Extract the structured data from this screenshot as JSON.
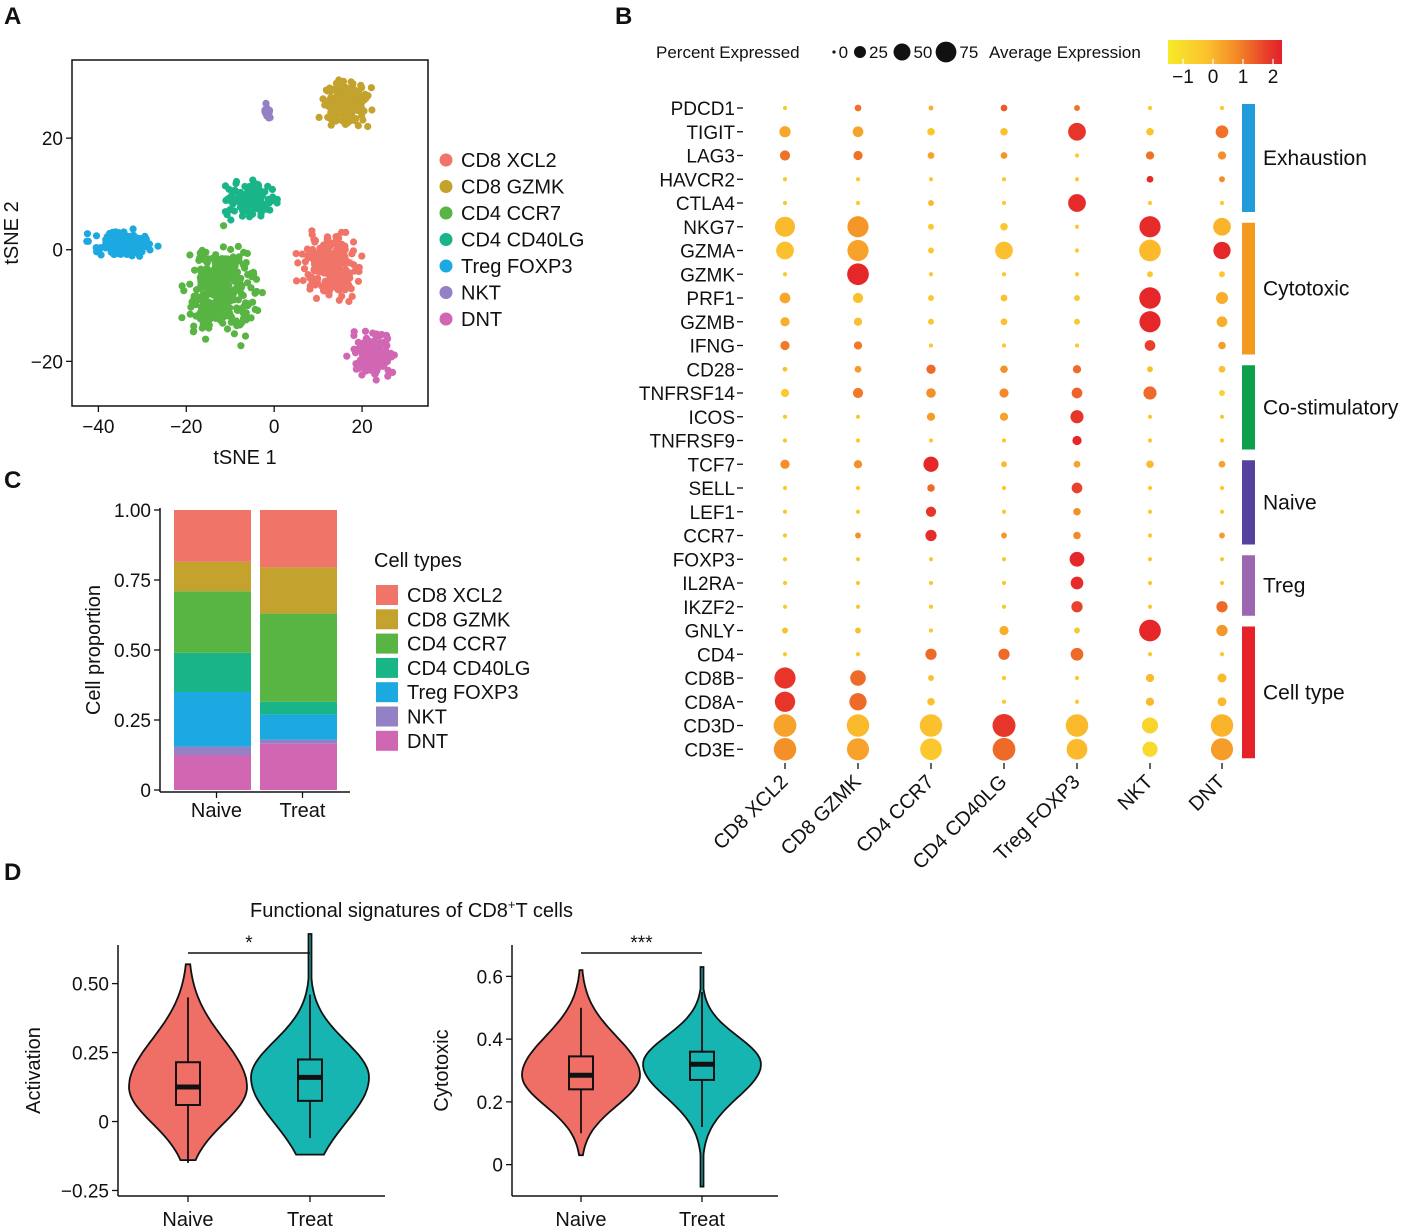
{
  "chart_data": [
    {
      "panel": "A",
      "type": "scatter",
      "xlabel": "tSNE 1",
      "ylabel": "tSNE 2",
      "xlim": [
        -46,
        35
      ],
      "ylim": [
        -28,
        34
      ],
      "xticks": [
        -40,
        -20,
        0,
        20
      ],
      "xtick_labels": [
        "−40",
        "−20",
        "0",
        "20"
      ],
      "yticks": [
        -20,
        0,
        20
      ],
      "ytick_labels": [
        "−20",
        "0",
        "20"
      ],
      "clusters": [
        {
          "name": "CD8 XCL2",
          "color": "#f07468",
          "center": [
            13,
            -3
          ],
          "spread": [
            5.5,
            4.5
          ],
          "n": 230
        },
        {
          "name": "CD8 GZMK",
          "color": "#c3a22e",
          "center": [
            16,
            26
          ],
          "spread": [
            4.5,
            3.5
          ],
          "n": 170
        },
        {
          "name": "CD4 CCR7",
          "color": "#58b443",
          "center": [
            -12,
            -7
          ],
          "spread": [
            6.5,
            7
          ],
          "n": 330
        },
        {
          "name": "CD4 CD40LG",
          "color": "#1ab489",
          "center": [
            -5,
            9
          ],
          "spread": [
            5,
            2.6
          ],
          "n": 130
        },
        {
          "name": "Treg FOXP3",
          "color": "#1ca8e0",
          "center": [
            -35,
            1
          ],
          "spread": [
            5.5,
            2
          ],
          "n": 150
        },
        {
          "name": "NKT",
          "color": "#9380c5",
          "center": [
            -1.5,
            24.5
          ],
          "spread": [
            0.9,
            1.1
          ],
          "n": 22
        },
        {
          "name": "DNT",
          "color": "#d166b2",
          "center": [
            22.5,
            -18.5
          ],
          "spread": [
            4,
            3.5
          ],
          "n": 150
        }
      ]
    },
    {
      "panel": "B",
      "type": "dot",
      "legend_size_title": "Percent Expressed",
      "size_levels": [
        0,
        25,
        50,
        75
      ],
      "legend_color_title": "Average Expression",
      "color_ticks": [
        -1,
        0,
        1,
        2
      ],
      "color_tick_labels": [
        "−1",
        "0",
        "1",
        "2"
      ],
      "color_range": [
        -1.5,
        2.3
      ],
      "colors": [
        "#f7ea2a",
        "#fbc02d",
        "#f38a27",
        "#e8432a",
        "#e41e2a"
      ],
      "columns": [
        "CD8 XCL2",
        "CD8 GZMK",
        "CD4 CCR7",
        "CD4 CD40LG",
        "Treg FOXP3",
        "NKT",
        "DNT"
      ],
      "genes": [
        "PDCD1",
        "TIGIT",
        "LAG3",
        "HAVCR2",
        "CTLA4",
        "NKG7",
        "GZMA",
        "GZMK",
        "PRF1",
        "GZMB",
        "IFNG",
        "CD28",
        "TNFRSF14",
        "ICOS",
        "TNFRSF9",
        "TCF7",
        "SELL",
        "LEF1",
        "CCR7",
        "FOXP3",
        "IL2RA",
        "IKZF2",
        "GNLY",
        "CD4",
        "CD8B",
        "CD8A",
        "CD3D",
        "CD3E"
      ],
      "percent": [
        [
          3,
          8,
          4,
          8,
          6,
          3,
          3
        ],
        [
          22,
          20,
          10,
          10,
          55,
          10,
          28
        ],
        [
          18,
          15,
          8,
          8,
          3,
          12,
          12
        ],
        [
          3,
          3,
          3,
          3,
          3,
          8,
          6
        ],
        [
          3,
          3,
          6,
          3,
          55,
          3,
          3
        ],
        [
          70,
          78,
          6,
          10,
          3,
          78,
          55
        ],
        [
          55,
          78,
          6,
          55,
          3,
          82,
          52
        ],
        [
          3,
          82,
          3,
          3,
          3,
          6,
          6
        ],
        [
          20,
          18,
          6,
          8,
          6,
          80,
          25
        ],
        [
          15,
          12,
          6,
          8,
          6,
          78,
          20
        ],
        [
          15,
          12,
          3,
          3,
          3,
          20,
          10
        ],
        [
          4,
          8,
          15,
          10,
          12,
          6,
          8
        ],
        [
          12,
          18,
          16,
          15,
          20,
          30,
          6
        ],
        [
          3,
          3,
          12,
          12,
          30,
          3,
          3
        ],
        [
          3,
          3,
          3,
          3,
          15,
          3,
          3
        ],
        [
          15,
          12,
          40,
          6,
          8,
          10,
          8
        ],
        [
          3,
          3,
          10,
          3,
          20,
          3,
          3
        ],
        [
          3,
          3,
          18,
          3,
          10,
          3,
          3
        ],
        [
          3,
          6,
          22,
          6,
          10,
          3,
          6
        ],
        [
          3,
          3,
          3,
          3,
          38,
          3,
          3
        ],
        [
          3,
          3,
          3,
          3,
          28,
          3,
          3
        ],
        [
          3,
          3,
          3,
          3,
          22,
          3,
          22
        ],
        [
          6,
          6,
          3,
          15,
          6,
          82,
          22
        ],
        [
          3,
          3,
          22,
          22,
          28,
          3,
          3
        ],
        [
          78,
          42,
          6,
          3,
          3,
          12,
          14
        ],
        [
          72,
          52,
          10,
          3,
          3,
          12,
          14
        ],
        [
          90,
          88,
          88,
          92,
          88,
          45,
          88
        ],
        [
          88,
          85,
          82,
          90,
          75,
          40,
          85
        ]
      ],
      "avg_expression": [
        [
          -0.5,
          0.9,
          0,
          1.2,
          0.9,
          -0.5,
          -0.5
        ],
        [
          0.1,
          0.2,
          -0.5,
          -0.3,
          1.8,
          -0.4,
          0.9
        ],
        [
          0.9,
          0.9,
          0.2,
          0.4,
          -0.6,
          0.9,
          0.5
        ],
        [
          -0.5,
          -0.5,
          -0.5,
          -0.5,
          -0.5,
          2.0,
          0.6
        ],
        [
          -0.5,
          -0.5,
          -0.2,
          -0.5,
          2.0,
          -0.5,
          -0.5
        ],
        [
          -0.2,
          0.4,
          -0.5,
          -0.5,
          -0.5,
          2.0,
          -0.1
        ],
        [
          -0.3,
          0.2,
          -0.5,
          -0.3,
          -0.5,
          -0.2,
          2.1
        ],
        [
          -0.5,
          2.1,
          -0.5,
          -0.5,
          -0.5,
          -0.5,
          -0.5
        ],
        [
          0.1,
          -0.3,
          -0.5,
          -0.3,
          -0.5,
          2.1,
          0.0
        ],
        [
          0.0,
          -0.3,
          -0.5,
          -0.3,
          -0.5,
          2.1,
          0.0
        ],
        [
          0.8,
          0.8,
          -0.5,
          -0.5,
          -0.5,
          1.6,
          0.3
        ],
        [
          -0.3,
          0.3,
          1.0,
          0.5,
          1.0,
          -0.3,
          -0.3
        ],
        [
          -0.6,
          0.8,
          0.5,
          0.6,
          1.1,
          1.0,
          -0.8
        ],
        [
          -0.5,
          -0.5,
          0.3,
          0.2,
          1.8,
          -0.5,
          -0.5
        ],
        [
          -0.5,
          -0.5,
          -0.5,
          -0.5,
          2.1,
          -0.5,
          -0.5
        ],
        [
          0.5,
          0.5,
          2.1,
          -0.2,
          0.2,
          -0.2,
          0.2
        ],
        [
          -0.5,
          -0.5,
          1.0,
          -0.5,
          1.5,
          -0.5,
          -0.5
        ],
        [
          -0.5,
          -0.5,
          1.8,
          -0.5,
          0.5,
          -0.5,
          -0.5
        ],
        [
          -0.5,
          0.5,
          2.0,
          0.4,
          0.6,
          -0.5,
          0.3
        ],
        [
          -0.5,
          -0.5,
          -0.5,
          -0.5,
          2.1,
          -0.5,
          -0.5
        ],
        [
          -0.5,
          -0.5,
          -0.5,
          -0.5,
          2.0,
          -0.5,
          -0.5
        ],
        [
          -0.5,
          -0.5,
          -0.5,
          -0.5,
          1.5,
          -0.5,
          1.0
        ],
        [
          -0.3,
          -0.3,
          -0.5,
          0.0,
          -0.5,
          2.1,
          0.4
        ],
        [
          -0.5,
          -0.5,
          1.0,
          1.0,
          1.0,
          -0.5,
          -0.5
        ],
        [
          1.8,
          1.0,
          -0.3,
          -0.5,
          -0.5,
          -0.2,
          -0.2
        ],
        [
          1.8,
          1.0,
          -0.3,
          -0.5,
          -0.5,
          -0.2,
          -0.2
        ],
        [
          0.2,
          -0.2,
          -0.3,
          1.8,
          -0.2,
          -0.9,
          -0.1
        ],
        [
          0.5,
          0.2,
          -0.5,
          1.0,
          -0.2,
          -1.0,
          0.3
        ]
      ],
      "groups": [
        {
          "name": "Exhaustion",
          "color": "#1f9cd9",
          "first_row": 0,
          "last_row": 4
        },
        {
          "name": "Cytotoxic",
          "color": "#f49a20",
          "first_row": 5,
          "last_row": 10
        },
        {
          "name": "Co-stimulatory",
          "color": "#0f9e4a",
          "first_row": 11,
          "last_row": 14
        },
        {
          "name": "Naive",
          "color": "#56419d",
          "first_row": 15,
          "last_row": 18
        },
        {
          "name": "Treg",
          "color": "#9c67b0",
          "first_row": 19,
          "last_row": 21
        },
        {
          "name": "Cell type",
          "color": "#e52228",
          "first_row": 22,
          "last_row": 27
        }
      ]
    },
    {
      "panel": "C",
      "type": "bar",
      "stacked": true,
      "categories": [
        "Naive",
        "Treat"
      ],
      "ylabel": "Cell proportion",
      "ylim": [
        0,
        1
      ],
      "yticks": [
        0,
        0.25,
        0.5,
        0.75,
        1.0
      ],
      "ytick_labels": [
        "0",
        "0.25",
        "0.50",
        "0.75",
        "1.00"
      ],
      "legend_title": "Cell types",
      "series": [
        {
          "name": "DNT",
          "color": "#d166b2",
          "values": [
            0.125,
            0.165
          ]
        },
        {
          "name": "NKT",
          "color": "#9380c5",
          "values": [
            0.03,
            0.015
          ]
        },
        {
          "name": "Treg FOXP3",
          "color": "#1ca8e0",
          "values": [
            0.195,
            0.09
          ]
        },
        {
          "name": "CD4 CD40LG",
          "color": "#1ab489",
          "values": [
            0.14,
            0.045
          ]
        },
        {
          "name": "CD4 CCR7",
          "color": "#58b443",
          "values": [
            0.22,
            0.315
          ]
        },
        {
          "name": "CD8 GZMK",
          "color": "#c3a22e",
          "values": [
            0.105,
            0.165
          ]
        },
        {
          "name": "CD8 XCL2",
          "color": "#f07468",
          "values": [
            0.185,
            0.205
          ]
        }
      ],
      "legend_order": [
        "CD8 XCL2",
        "CD8 GZMK",
        "CD4 CCR7",
        "CD4 CD40LG",
        "Treg FOXP3",
        "NKT",
        "DNT"
      ]
    },
    {
      "panel": "D",
      "type": "violin",
      "suptitle_prefix": "Functional signatures of  CD8",
      "suptitle_sup": "+",
      "suptitle_suffix": "T cells",
      "plots": [
        {
          "ylabel": "Activation",
          "categories": [
            "Naive",
            "Treat"
          ],
          "ylim": [
            -0.27,
            0.64
          ],
          "yticks": [
            -0.25,
            0,
            0.25,
            0.5
          ],
          "ytick_labels": [
            "−0.25",
            "0",
            "0.25",
            "0.50"
          ],
          "colors": [
            "#ef6f67",
            "#17b5b1"
          ],
          "significance": "*",
          "groups": [
            {
              "name": "Naive",
              "min": -0.15,
              "q1": 0.06,
              "median": 0.125,
              "q3": 0.215,
              "max": 0.45,
              "vmin": -0.14,
              "vmax": 0.57
            },
            {
              "name": "Treat",
              "min": -0.06,
              "q1": 0.075,
              "median": 0.16,
              "q3": 0.225,
              "max": 0.46,
              "vmin": -0.12,
              "vmax": 0.68
            }
          ]
        },
        {
          "ylabel": "Cytotoxic",
          "categories": [
            "Naive",
            "Treat"
          ],
          "ylim": [
            -0.1,
            0.7
          ],
          "yticks": [
            0,
            0.2,
            0.4,
            0.6
          ],
          "ytick_labels": [
            "0",
            "0.2",
            "0.4",
            "0.6"
          ],
          "colors": [
            "#ef6f67",
            "#17b5b1"
          ],
          "significance": "***",
          "groups": [
            {
              "name": "Naive",
              "min": 0.1,
              "q1": 0.24,
              "median": 0.285,
              "q3": 0.345,
              "max": 0.5,
              "vmin": 0.03,
              "vmax": 0.62
            },
            {
              "name": "Treat",
              "min": 0.12,
              "q1": 0.27,
              "median": 0.32,
              "q3": 0.36,
              "max": 0.55,
              "vmin": -0.07,
              "vmax": 0.63
            }
          ]
        }
      ]
    }
  ],
  "panel_labels": [
    "A",
    "B",
    "C",
    "D"
  ]
}
